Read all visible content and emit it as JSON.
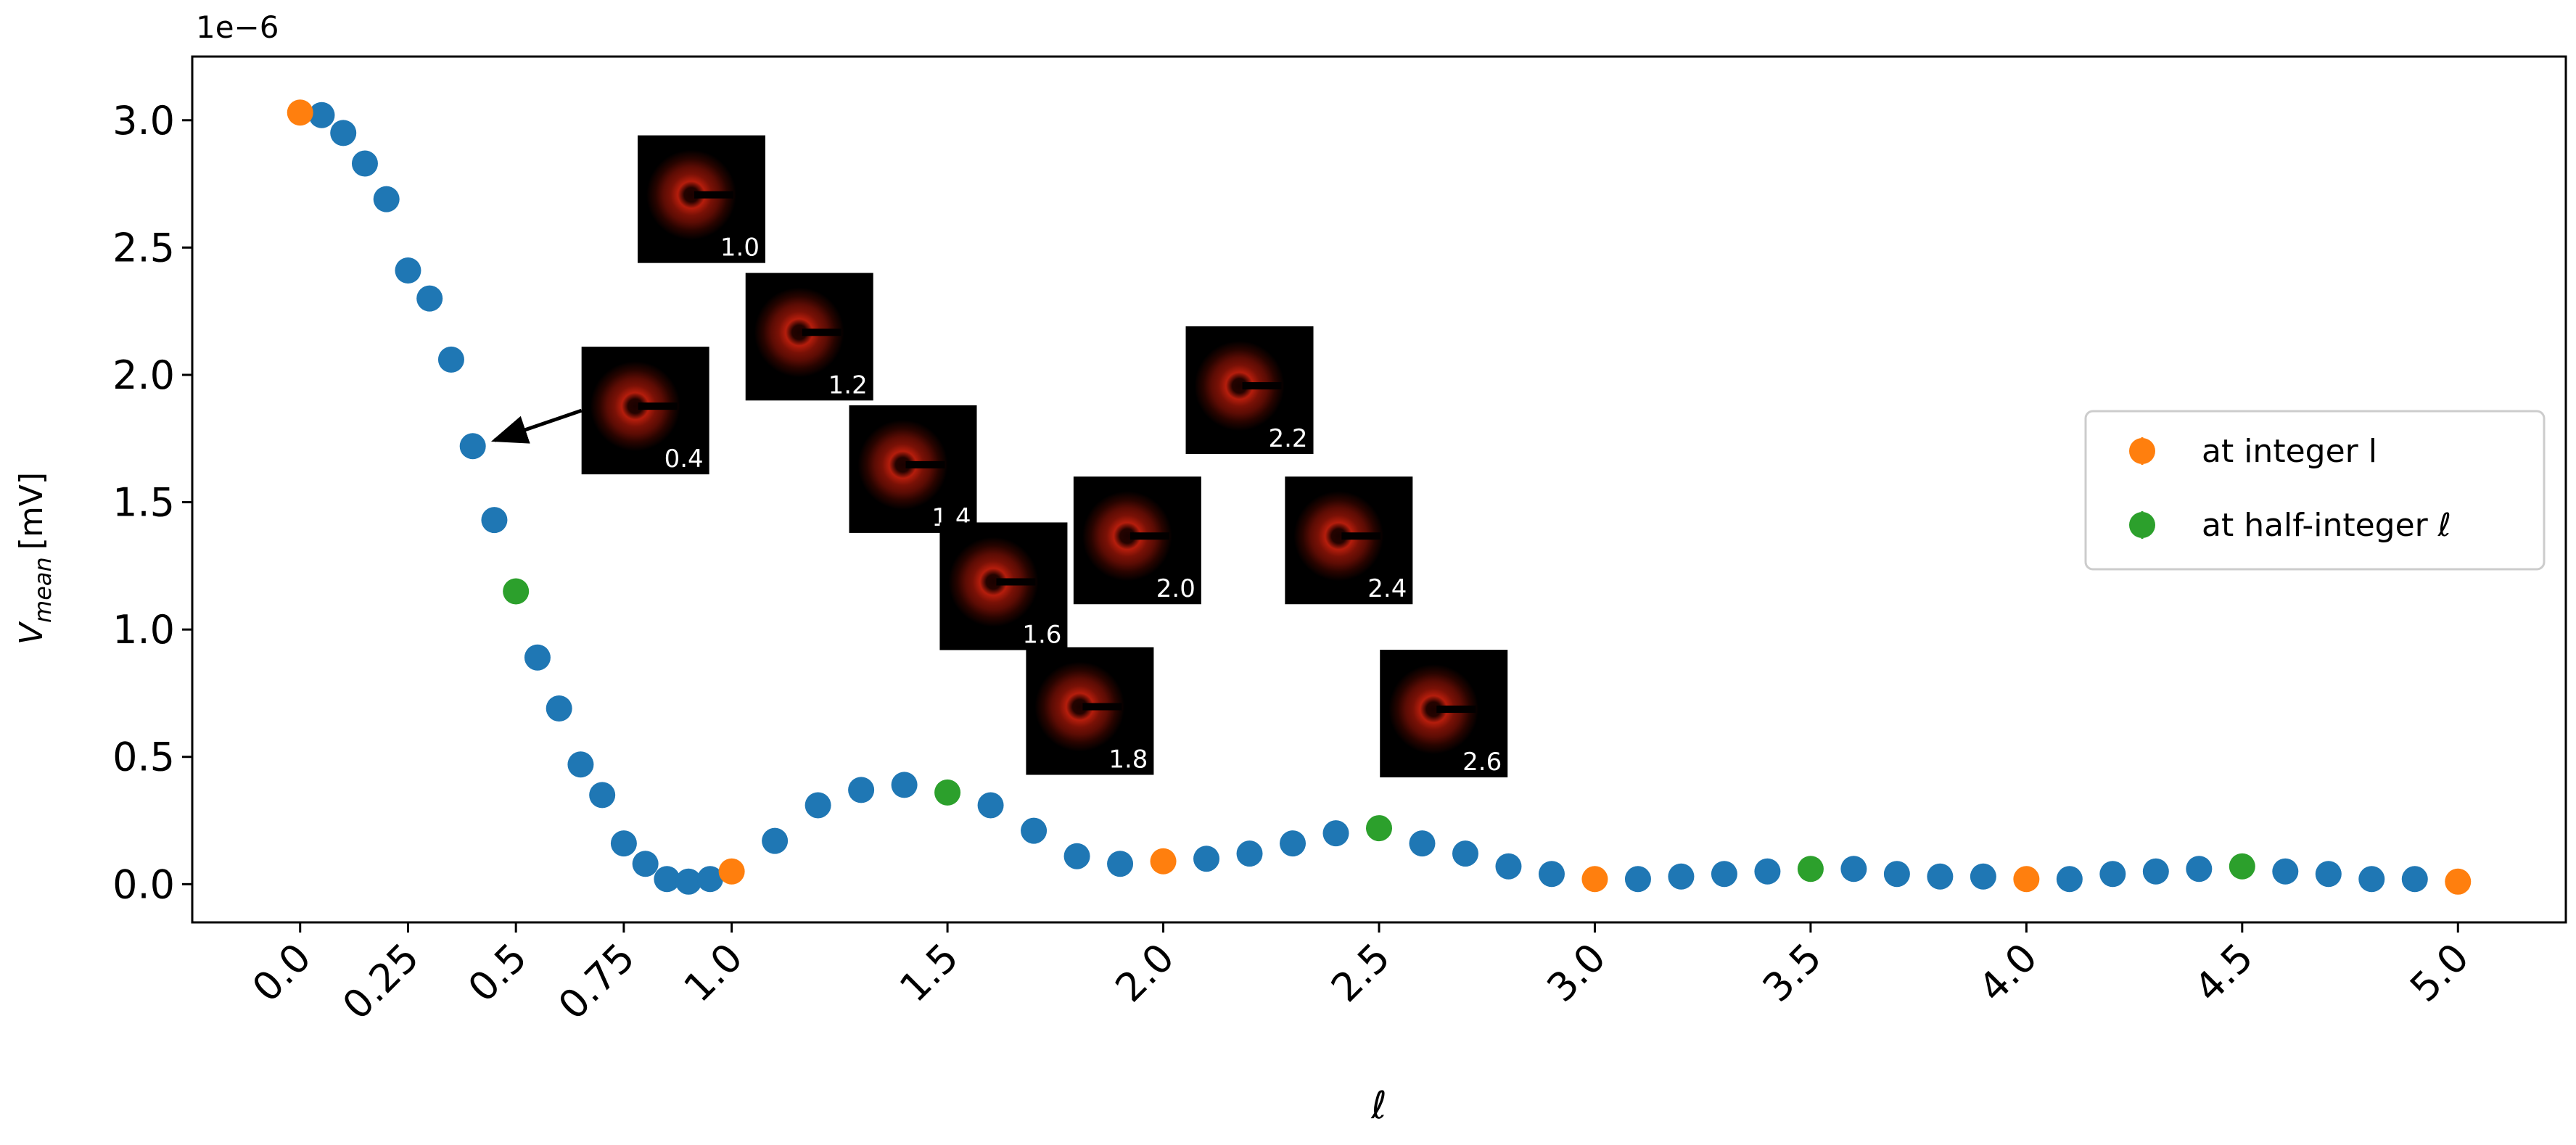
{
  "chart_data": {
    "type": "scatter",
    "scale_label": "1e−6",
    "ylabel_main": "V",
    "ylabel_sub": "mean",
    "ylabel_unit": "[mV]",
    "xlabel": "ℓ",
    "xlim": [
      -0.25,
      5.25
    ],
    "ylim": [
      -0.15,
      3.25
    ],
    "x_ticks": [
      {
        "value": 0.0,
        "label": "0.0"
      },
      {
        "value": 0.25,
        "label": "0.25"
      },
      {
        "value": 0.5,
        "label": "0.5"
      },
      {
        "value": 0.75,
        "label": "0.75"
      },
      {
        "value": 1.0,
        "label": "1.0"
      },
      {
        "value": 1.5,
        "label": "1.5"
      },
      {
        "value": 2.0,
        "label": "2.0"
      },
      {
        "value": 2.5,
        "label": "2.5"
      },
      {
        "value": 3.0,
        "label": "3.0"
      },
      {
        "value": 3.5,
        "label": "3.5"
      },
      {
        "value": 4.0,
        "label": "4.0"
      },
      {
        "value": 4.5,
        "label": "4.5"
      },
      {
        "value": 5.0,
        "label": "5.0"
      }
    ],
    "y_ticks": [
      {
        "value": 0.0,
        "label": "0.0"
      },
      {
        "value": 0.5,
        "label": "0.5"
      },
      {
        "value": 1.0,
        "label": "1.0"
      },
      {
        "value": 1.5,
        "label": "1.5"
      },
      {
        "value": 2.0,
        "label": "2.0"
      },
      {
        "value": 2.5,
        "label": "2.5"
      },
      {
        "value": 3.0,
        "label": "3.0"
      }
    ],
    "grid": false,
    "legend_position": "right",
    "series": [
      {
        "color": "#1f77b4",
        "x": [
          0.05,
          0.1,
          0.15,
          0.2,
          0.25,
          0.3,
          0.35,
          0.4,
          0.45,
          0.55,
          0.6,
          0.65,
          0.7,
          0.75,
          0.8,
          0.85,
          0.9,
          0.95,
          1.1,
          1.2,
          1.3,
          1.4,
          1.6,
          1.7,
          1.8,
          1.9,
          2.1,
          2.2,
          2.3,
          2.4,
          2.6,
          2.7,
          2.8,
          2.9,
          3.1,
          3.2,
          3.3,
          3.4,
          3.6,
          3.7,
          3.8,
          3.9,
          4.1,
          4.2,
          4.3,
          4.4,
          4.6,
          4.7,
          4.8,
          4.9
        ],
        "y": [
          3.02,
          2.95,
          2.83,
          2.69,
          2.41,
          2.3,
          2.06,
          1.72,
          1.43,
          0.89,
          0.69,
          0.47,
          0.35,
          0.16,
          0.08,
          0.02,
          0.01,
          0.02,
          0.17,
          0.31,
          0.37,
          0.39,
          0.31,
          0.21,
          0.11,
          0.08,
          0.1,
          0.12,
          0.16,
          0.2,
          0.16,
          0.12,
          0.07,
          0.04,
          0.02,
          0.03,
          0.04,
          0.05,
          0.06,
          0.04,
          0.03,
          0.03,
          0.02,
          0.04,
          0.05,
          0.06,
          0.05,
          0.04,
          0.02,
          0.02
        ]
      },
      {
        "name": "at integer l",
        "color": "#ff7f0e",
        "x": [
          0,
          1,
          2,
          3,
          4,
          5
        ],
        "y": [
          3.03,
          0.05,
          0.09,
          0.02,
          0.02,
          0.01
        ]
      },
      {
        "name": "at half-integer ℓ",
        "color": "#2ca02c",
        "x": [
          0.5,
          1.5,
          2.5,
          3.5,
          4.5
        ],
        "y": [
          1.15,
          0.36,
          0.22,
          0.06,
          0.07
        ]
      }
    ],
    "annotations": [
      {
        "label": "0.4",
        "x": 0.8,
        "y": 1.86,
        "arrow_to": [
          0.4,
          1.72
        ]
      },
      {
        "label": "1.0",
        "x": 0.93,
        "y": 2.69
      },
      {
        "label": "1.2",
        "x": 1.18,
        "y": 2.15
      },
      {
        "label": "1.4",
        "x": 1.42,
        "y": 1.63
      },
      {
        "label": "1.6",
        "x": 1.63,
        "y": 1.17
      },
      {
        "label": "1.8",
        "x": 1.83,
        "y": 0.68
      },
      {
        "label": "2.0",
        "x": 1.94,
        "y": 1.35
      },
      {
        "label": "2.2",
        "x": 2.2,
        "y": 1.94
      },
      {
        "label": "2.4",
        "x": 2.43,
        "y": 1.35
      },
      {
        "label": "2.6",
        "x": 2.65,
        "y": 0.67
      }
    ]
  }
}
